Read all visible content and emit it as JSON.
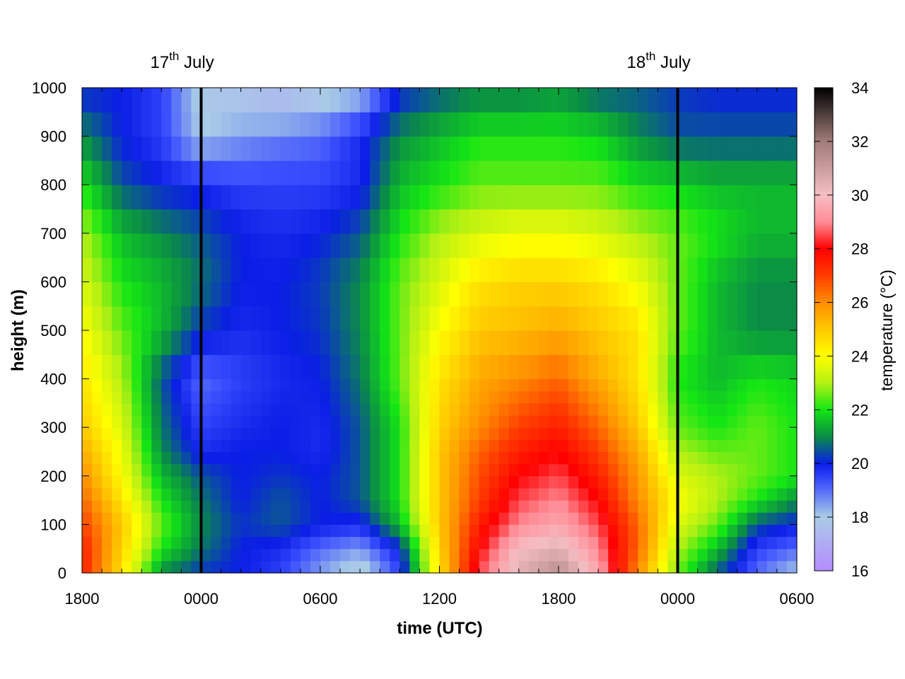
{
  "chart_data": {
    "type": "heatmap",
    "title": "",
    "xlabel": "time (UTC)",
    "ylabel": "height (m)",
    "colorbar_label": "temperature (°C)",
    "x_ticks": [
      "1800",
      "0000",
      "0600",
      "1200",
      "1800",
      "0000",
      "0600"
    ],
    "x_range_hours": [
      0,
      36
    ],
    "y_ticks": [
      0,
      100,
      200,
      300,
      400,
      500,
      600,
      700,
      800,
      900,
      1000
    ],
    "y_range": [
      0,
      1000
    ],
    "colorbar_ticks": [
      16,
      18,
      20,
      22,
      24,
      26,
      28,
      30,
      32,
      34
    ],
    "colorbar_range": [
      16,
      34
    ],
    "day_markers": [
      {
        "hour": 6,
        "label_base": "17",
        "label_sup": "th",
        "label_rest": " July"
      },
      {
        "hour": 30,
        "label_base": "18",
        "label_sup": "th",
        "label_rest": " July"
      }
    ],
    "color_stops": [
      {
        "v": 16,
        "c": "#b48cff"
      },
      {
        "v": 18,
        "c": "#a9cce6"
      },
      {
        "v": 19.3,
        "c": "#3c50ff"
      },
      {
        "v": 20,
        "c": "#0a1ee6"
      },
      {
        "v": 21,
        "c": "#0a8c46"
      },
      {
        "v": 22,
        "c": "#14e614"
      },
      {
        "v": 23,
        "c": "#b4f014"
      },
      {
        "v": 24,
        "c": "#ffff00"
      },
      {
        "v": 25,
        "c": "#ffc800"
      },
      {
        "v": 26,
        "c": "#ff8c00"
      },
      {
        "v": 27,
        "c": "#ff3c00"
      },
      {
        "v": 28,
        "c": "#ff0000"
      },
      {
        "v": 29,
        "c": "#ff8c96"
      },
      {
        "v": 30,
        "c": "#f5bec3"
      },
      {
        "v": 32,
        "c": "#a07d78"
      },
      {
        "v": 34,
        "c": "#000000"
      }
    ],
    "grid_heights": [
      0,
      50,
      100,
      150,
      200,
      250,
      300,
      400,
      500,
      600,
      700,
      800,
      900,
      1000
    ],
    "grid_hours": [
      0,
      2,
      4,
      6,
      8,
      10,
      12,
      14,
      16,
      18,
      20,
      22,
      24,
      26,
      28,
      30,
      32,
      34,
      36
    ],
    "temperature_grid": [
      [
        27.5,
        24.5,
        21.0,
        20.2,
        20.0,
        19.5,
        18.5,
        17.5,
        19.5,
        24.5,
        28.5,
        30.5,
        31.5,
        29.5,
        26.0,
        22.5,
        20.5,
        19.0,
        18.0
      ],
      [
        27.5,
        24.8,
        22.0,
        20.8,
        20.0,
        19.8,
        19.0,
        18.5,
        20.0,
        24.8,
        28.0,
        30.0,
        30.5,
        29.0,
        26.5,
        23.0,
        21.5,
        19.5,
        19.0
      ],
      [
        27.0,
        25.0,
        22.5,
        21.0,
        20.2,
        20.5,
        20.0,
        19.8,
        21.5,
        25.0,
        27.5,
        29.0,
        29.5,
        28.5,
        26.5,
        23.5,
        22.5,
        20.5,
        20.0
      ],
      [
        26.5,
        24.5,
        22.0,
        20.8,
        20.0,
        20.5,
        20.0,
        20.5,
        22.0,
        25.0,
        27.0,
        28.5,
        29.0,
        28.0,
        26.0,
        24.0,
        23.0,
        22.0,
        21.0
      ],
      [
        26.0,
        24.0,
        21.5,
        20.5,
        20.0,
        20.2,
        20.0,
        20.5,
        22.0,
        25.0,
        26.8,
        28.0,
        28.5,
        27.5,
        25.8,
        23.5,
        23.0,
        22.5,
        22.0
      ],
      [
        25.5,
        23.8,
        21.0,
        19.8,
        20.0,
        20.0,
        19.8,
        20.5,
        22.0,
        25.0,
        26.5,
        27.5,
        28.0,
        27.0,
        25.5,
        23.0,
        22.5,
        22.5,
        22.0
      ],
      [
        25.0,
        23.5,
        20.8,
        19.5,
        19.8,
        20.0,
        19.8,
        20.5,
        22.0,
        24.8,
        26.0,
        27.0,
        27.5,
        26.5,
        25.0,
        22.5,
        22.0,
        22.5,
        22.0
      ],
      [
        24.5,
        23.0,
        20.5,
        19.0,
        19.5,
        19.8,
        20.0,
        20.8,
        22.5,
        24.5,
        25.5,
        26.0,
        26.5,
        25.5,
        24.5,
        22.0,
        21.5,
        22.0,
        21.8
      ],
      [
        24.0,
        22.5,
        21.5,
        20.2,
        19.8,
        20.0,
        20.2,
        21.0,
        22.5,
        24.0,
        25.0,
        25.2,
        25.5,
        25.0,
        24.5,
        22.5,
        21.5,
        21.0,
        21.0
      ],
      [
        23.5,
        22.0,
        21.5,
        20.8,
        20.0,
        20.0,
        20.3,
        21.0,
        22.5,
        23.5,
        24.5,
        24.8,
        24.8,
        24.5,
        23.8,
        22.5,
        21.5,
        21.0,
        21.0
      ],
      [
        23.0,
        21.5,
        21.0,
        20.5,
        20.0,
        19.8,
        20.0,
        20.5,
        22.0,
        23.0,
        23.5,
        23.8,
        23.8,
        23.5,
        23.0,
        22.5,
        22.0,
        21.5,
        21.5
      ],
      [
        22.0,
        20.5,
        20.0,
        19.8,
        19.5,
        19.5,
        19.5,
        19.8,
        21.5,
        22.0,
        22.5,
        22.5,
        22.5,
        22.5,
        22.0,
        21.8,
        21.5,
        21.5,
        21.5
      ],
      [
        21.0,
        20.0,
        19.5,
        18.0,
        18.5,
        18.8,
        19.0,
        19.8,
        21.0,
        21.5,
        22.0,
        22.0,
        22.0,
        21.8,
        21.0,
        20.5,
        20.5,
        20.5,
        20.5
      ],
      [
        20.0,
        20.0,
        19.5,
        17.8,
        17.5,
        17.0,
        17.5,
        18.0,
        20.0,
        20.5,
        20.8,
        20.8,
        21.0,
        20.5,
        20.5,
        20.2,
        20.0,
        20.0,
        20.0
      ]
    ]
  }
}
